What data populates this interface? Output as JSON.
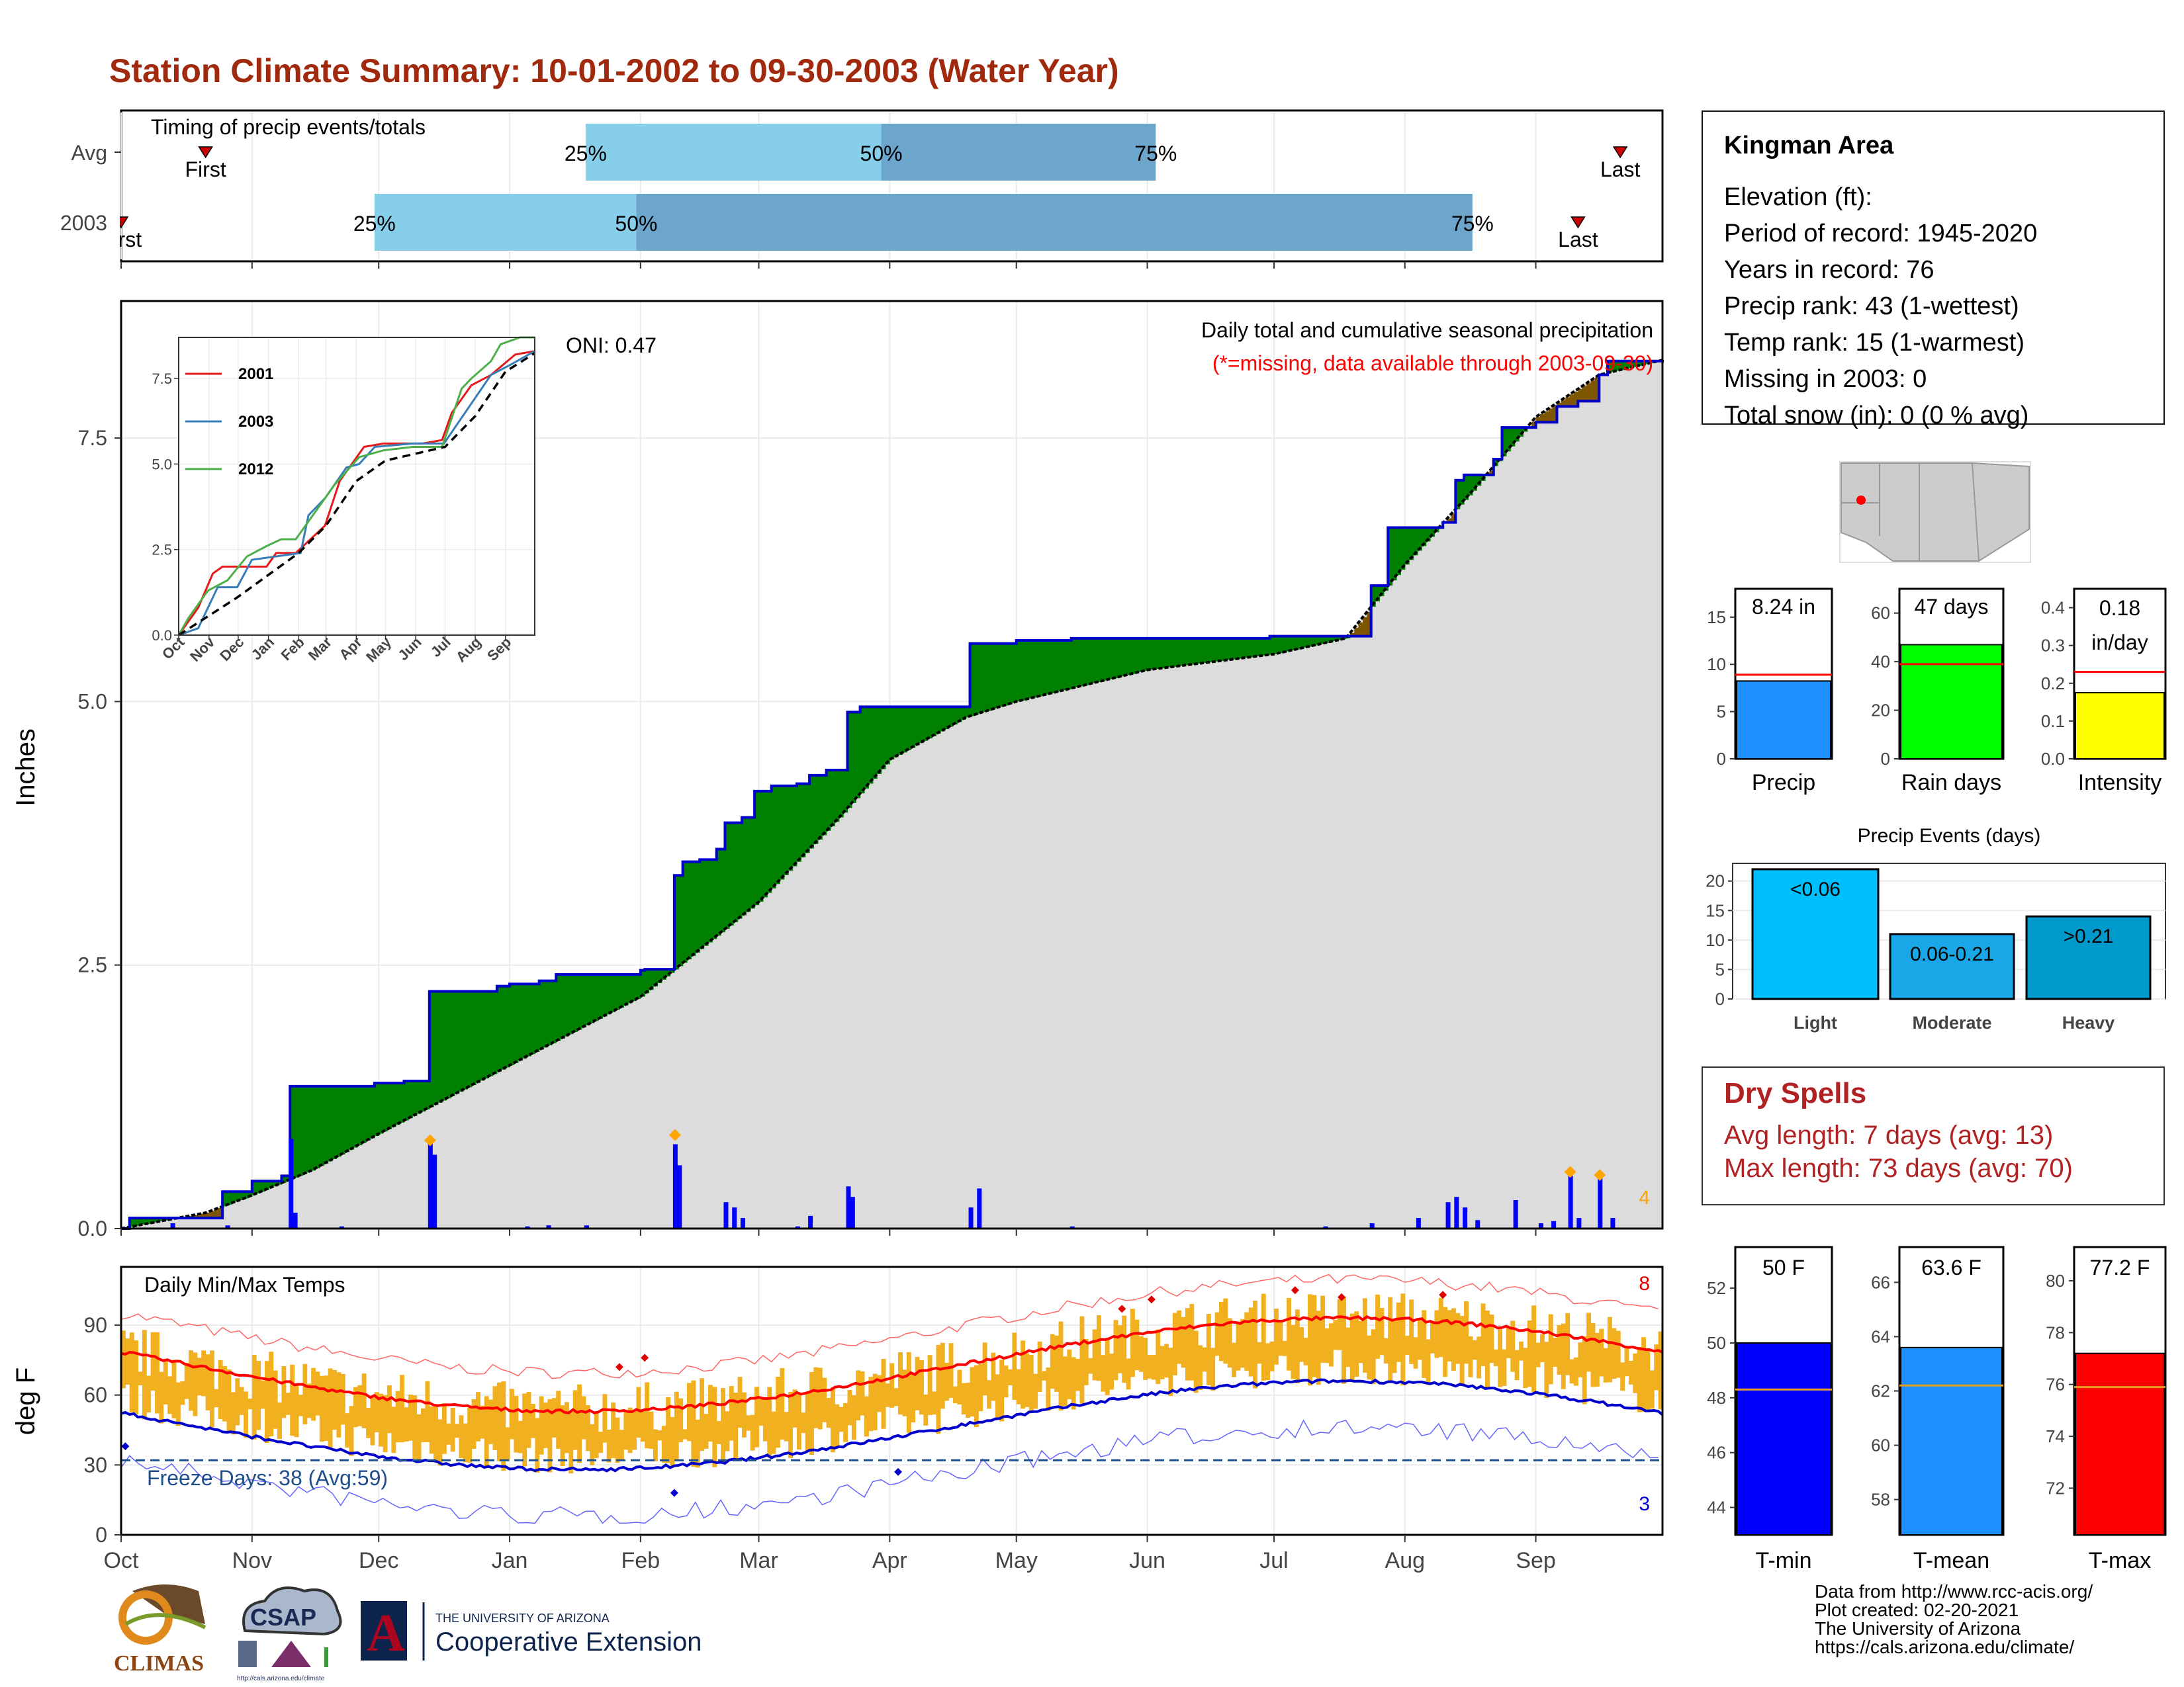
{
  "title": "Station Climate Summary: 10-01-2002 to 09-30-2003 (Water Year)",
  "months": [
    "Oct",
    "Nov",
    "Dec",
    "Jan",
    "Feb",
    "Mar",
    "Apr",
    "May",
    "Jun",
    "Jul",
    "Aug",
    "Sep"
  ],
  "timing": {
    "label": "Timing of precip events/totals",
    "rows": [
      "Avg",
      "2003"
    ],
    "q_labels": [
      "25%",
      "50%",
      "75%"
    ],
    "first_label": "First",
    "last_label": "Last",
    "bar_light": "#87ceeb",
    "bar_dark": "#6ca6cd",
    "avg": {
      "first_day": 20,
      "q25": 110,
      "q50": 180,
      "q75": 245,
      "last_day": 355
    },
    "y2003": {
      "first_day": 0,
      "q25": 60,
      "q50": 122,
      "q75": 320,
      "last_day": 345
    },
    "first_2003_label": "First"
  },
  "precip_panel": {
    "ylabel": "Inches",
    "yticks": [
      "0.0",
      "2.5",
      "5.0",
      "7.5"
    ],
    "ylim": [
      0,
      8.8
    ],
    "oni": "ONI: 0.47",
    "subtitle": "Daily total and cumulative seasonal precipitation",
    "missing_note": "(*=missing, data available through 2003-09-30)",
    "corner_count": "4",
    "colors": {
      "cum": "#0000cd",
      "above": "#008000",
      "below": "#7f5600",
      "normal_fill": "#dcdcdc",
      "daily": "#0000ff",
      "extreme": "#ffa500"
    }
  },
  "inset": {
    "yticks": [
      "0.0",
      "2.5",
      "5.0",
      "7.5"
    ],
    "series": [
      {
        "name": "2001",
        "color": "#e41a1c"
      },
      {
        "name": "2003",
        "color": "#377eb8"
      },
      {
        "name": "2012",
        "color": "#4daf4a"
      }
    ]
  },
  "temp_panel": {
    "ylabel": "deg F",
    "label": "Daily Min/Max Temps",
    "yticks": [
      "0",
      "30",
      "60",
      "90"
    ],
    "freeze": "Freeze Days: 38 (Avg:59)",
    "max_count": "8",
    "min_count": "3",
    "colors": {
      "bar": "#f0b020",
      "avg_max": "#ff0000",
      "avg_min": "#0000cd",
      "rec_max": "#ff6666",
      "rec_min": "#6666ff",
      "freeze": "#1f4e8c"
    }
  },
  "info": {
    "title": "Kingman Area",
    "lines": [
      "Elevation (ft):",
      "Period of record: 1945-2020",
      "Years in record: 76",
      "Precip rank: 43 (1-wettest)",
      "Temp rank: 15 (1-warmest)",
      "Missing in 2003: 0",
      "Total snow (in): 0 (0 % avg)"
    ]
  },
  "mini_bars": [
    {
      "label": "Precip",
      "value_label": "8.24 in",
      "value": 8.24,
      "avg": 8.9,
      "ymax": 18,
      "yticks": [
        "0",
        "5",
        "10",
        "15"
      ],
      "color": "#1e90ff"
    },
    {
      "label": "Rain days",
      "value_label": "47 days",
      "value": 47,
      "avg": 39,
      "ymax": 70,
      "yticks": [
        "0",
        "20",
        "40",
        "60"
      ],
      "color": "#00ff00"
    },
    {
      "label": "Intensity",
      "value_label": "0.18 in/day",
      "value_a": "0.18",
      "value_b": "in/day",
      "value": 0.175,
      "avg": 0.23,
      "ymax": 0.45,
      "yticks": [
        "0.0",
        "0.1",
        "0.2",
        "0.3",
        "0.4"
      ],
      "color": "#ffff00"
    }
  ],
  "precip_events": {
    "title": "Precip Events (days)",
    "categories": [
      "Light",
      "Moderate",
      "Heavy"
    ],
    "bar_labels": [
      "<0.06",
      "0.06-0.21",
      ">0.21"
    ],
    "values": [
      22,
      11,
      14
    ],
    "yticks": [
      "0",
      "5",
      "10",
      "15",
      "20"
    ],
    "colors": [
      "#00bfff",
      "#1aa7e8",
      "#0099cc"
    ]
  },
  "dry_spells": {
    "title": "Dry Spells",
    "avg_line": "Avg length: 7 days (avg: 13)",
    "max_line": "Max length: 73 days (avg: 70)"
  },
  "temp_bars": [
    {
      "label": "T-min",
      "value_label": "50 F",
      "value": 50.0,
      "avg": 48.3,
      "ymin": 43,
      "ymax": 53.5,
      "yticks": [
        "44",
        "46",
        "48",
        "50",
        "52"
      ],
      "color": "#0000ff"
    },
    {
      "label": "T-mean",
      "value_label": "63.6 F",
      "value": 63.6,
      "avg": 62.2,
      "ymin": 56.7,
      "ymax": 67.3,
      "yticks": [
        "58",
        "60",
        "62",
        "64",
        "66"
      ],
      "color": "#1e90ff"
    },
    {
      "label": "T-max",
      "value_label": "77.2 F",
      "value": 77.2,
      "avg": 75.9,
      "ymin": 70.2,
      "ymax": 81.3,
      "yticks": [
        "72",
        "74",
        "76",
        "78",
        "80"
      ],
      "color": "#ff0000"
    }
  ],
  "footer": {
    "lines": [
      "Data from http://www.rcc-acis.org/",
      "Plot created: 02-20-2021",
      "The University of Arizona",
      "https://cals.arizona.edu/climate/"
    ]
  },
  "logos": {
    "climas": "CLIMAS",
    "csap": "CSAP",
    "csap_url": "http://cals.arizona.edu/climate",
    "ua_line1": "THE UNIVERSITY OF ARIZONA",
    "ua_line2": "Cooperative Extension",
    "ua_letter": "A"
  }
}
